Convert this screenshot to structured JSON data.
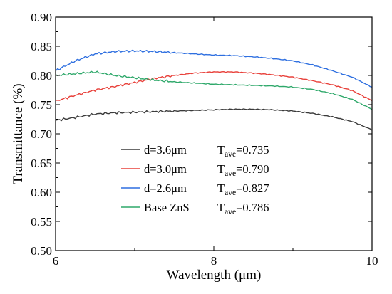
{
  "chart_data": {
    "type": "line",
    "xlabel": "Wavelength (μm)",
    "ylabel": "Transmittance (%)",
    "xlim": [
      6,
      10
    ],
    "ylim": [
      0.5,
      0.9
    ],
    "xticks": [
      "6",
      "8",
      "10"
    ],
    "yticks": [
      "0.50",
      "0.55",
      "0.60",
      "0.65",
      "0.70",
      "0.75",
      "0.80",
      "0.85",
      "0.90"
    ],
    "grid": false,
    "legend_position": "lower-center",
    "series": [
      {
        "name": "d=3.6μm",
        "tave_label": "ave",
        "tave_value": "=0.735",
        "color": "#3a3a3a",
        "x": [
          6.0,
          6.25,
          6.5,
          6.75,
          7.0,
          7.25,
          7.5,
          7.75,
          8.0,
          8.25,
          8.5,
          8.75,
          9.0,
          9.25,
          9.5,
          9.75,
          10.0
        ],
        "y": [
          0.723,
          0.728,
          0.734,
          0.736,
          0.737,
          0.738,
          0.739,
          0.74,
          0.741,
          0.742,
          0.742,
          0.741,
          0.739,
          0.735,
          0.729,
          0.721,
          0.707
        ]
      },
      {
        "name": "d=3.0μm",
        "tave_label": "ave",
        "tave_value": "=0.790",
        "color": "#e8403a",
        "x": [
          6.0,
          6.25,
          6.5,
          6.75,
          7.0,
          7.25,
          7.5,
          7.75,
          8.0,
          8.25,
          8.5,
          8.75,
          9.0,
          9.25,
          9.5,
          9.75,
          10.0
        ],
        "y": [
          0.756,
          0.766,
          0.775,
          0.781,
          0.788,
          0.795,
          0.8,
          0.804,
          0.806,
          0.806,
          0.804,
          0.801,
          0.797,
          0.791,
          0.784,
          0.774,
          0.757
        ]
      },
      {
        "name": "d=2.6μm",
        "tave_label": "ave",
        "tave_value": "=0.827",
        "color": "#2e6fe0",
        "x": [
          6.0,
          6.25,
          6.5,
          6.75,
          7.0,
          7.25,
          7.5,
          7.75,
          8.0,
          8.25,
          8.5,
          8.75,
          9.0,
          9.25,
          9.5,
          9.75,
          10.0
        ],
        "y": [
          0.808,
          0.825,
          0.837,
          0.841,
          0.842,
          0.841,
          0.839,
          0.837,
          0.835,
          0.834,
          0.832,
          0.829,
          0.825,
          0.818,
          0.808,
          0.797,
          0.78
        ]
      },
      {
        "name": "Base ZnS",
        "tave_label": "ave",
        "tave_value": "=0.786",
        "color": "#2ea86a",
        "x": [
          6.0,
          6.25,
          6.5,
          6.75,
          7.0,
          7.25,
          7.5,
          7.75,
          8.0,
          8.25,
          8.5,
          8.75,
          9.0,
          9.25,
          9.5,
          9.75,
          10.0
        ],
        "y": [
          0.8,
          0.803,
          0.806,
          0.8,
          0.796,
          0.792,
          0.789,
          0.787,
          0.785,
          0.784,
          0.783,
          0.782,
          0.78,
          0.776,
          0.769,
          0.759,
          0.742
        ]
      }
    ]
  }
}
